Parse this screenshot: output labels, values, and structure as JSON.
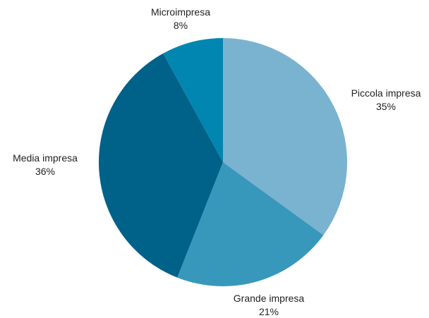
{
  "chart_data": {
    "type": "pie",
    "title": "",
    "slices": [
      {
        "label": "Piccola impresa",
        "value": 35,
        "display": "35%",
        "color": "#7ab3d0"
      },
      {
        "label": "Grande impresa",
        "value": 21,
        "display": "21%",
        "color": "#3798bc"
      },
      {
        "label": "Media impresa",
        "value": 36,
        "display": "36%",
        "color": "#006189"
      },
      {
        "label": "Microimpresa",
        "value": 8,
        "display": "8%",
        "color": "#0086b0"
      }
    ],
    "start_angle": "top (12 o'clock)",
    "direction": "clockwise",
    "legend": "none (labels outside slices)"
  }
}
